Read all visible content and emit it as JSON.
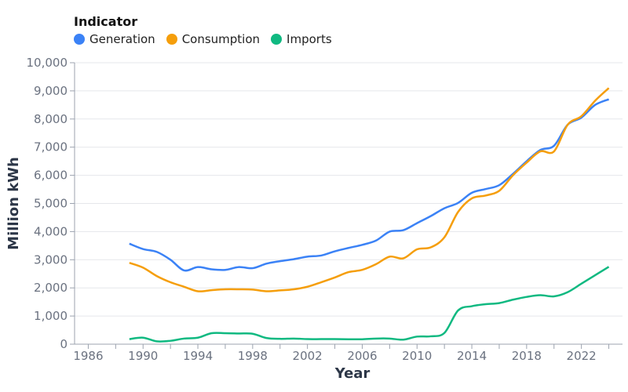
{
  "chart_data": {
    "type": "line",
    "title": "",
    "legend_title": "Indicator",
    "legend_placement": "top-left",
    "xlabel": "Year",
    "ylabel": "Million kWh",
    "xlim": [
      1985,
      2025
    ],
    "ylim": [
      0,
      10000
    ],
    "grid": true,
    "x_ticks": [
      "1986",
      "1990",
      "1994",
      "1998",
      "2002",
      "2006",
      "2010",
      "2014",
      "2018",
      "2022"
    ],
    "y_ticks": [
      "0",
      "1,000",
      "2,000",
      "3,000",
      "4,000",
      "5,000",
      "6,000",
      "7,000",
      "8,000",
      "9,000",
      "10,000"
    ],
    "x": [
      1989,
      1990,
      1991,
      1992,
      1993,
      1994,
      1995,
      1996,
      1997,
      1998,
      1999,
      2000,
      2001,
      2002,
      2003,
      2004,
      2005,
      2006,
      2007,
      2008,
      2009,
      2010,
      2011,
      2012,
      2013,
      2014,
      2015,
      2016,
      2017,
      2018,
      2019,
      2020,
      2021,
      2022,
      2023,
      2024
    ],
    "series": [
      {
        "name": "Generation",
        "color": "#3b82f6",
        "values": [
          3570,
          3380,
          3280,
          3000,
          2620,
          2740,
          2660,
          2640,
          2740,
          2700,
          2860,
          2950,
          3020,
          3110,
          3150,
          3300,
          3420,
          3530,
          3680,
          4000,
          4050,
          4300,
          4550,
          4830,
          5020,
          5380,
          5510,
          5650,
          6050,
          6500,
          6900,
          7050,
          7800,
          8050,
          8500,
          8700
        ]
      },
      {
        "name": "Consumption",
        "color": "#f59e0b",
        "values": [
          2890,
          2720,
          2420,
          2200,
          2040,
          1880,
          1920,
          1950,
          1950,
          1940,
          1880,
          1910,
          1950,
          2040,
          2200,
          2370,
          2560,
          2640,
          2840,
          3110,
          3050,
          3370,
          3440,
          3800,
          4700,
          5180,
          5280,
          5450,
          6000,
          6450,
          6850,
          6850,
          7800,
          8100,
          8650,
          9100
        ]
      },
      {
        "name": "Imports",
        "color": "#10b981",
        "values": [
          180,
          230,
          100,
          120,
          200,
          230,
          390,
          390,
          380,
          370,
          220,
          190,
          200,
          180,
          180,
          180,
          175,
          175,
          200,
          200,
          160,
          270,
          280,
          400,
          1200,
          1350,
          1420,
          1460,
          1580,
          1680,
          1740,
          1700,
          1850,
          2150,
          2450,
          2750
        ]
      }
    ]
  }
}
